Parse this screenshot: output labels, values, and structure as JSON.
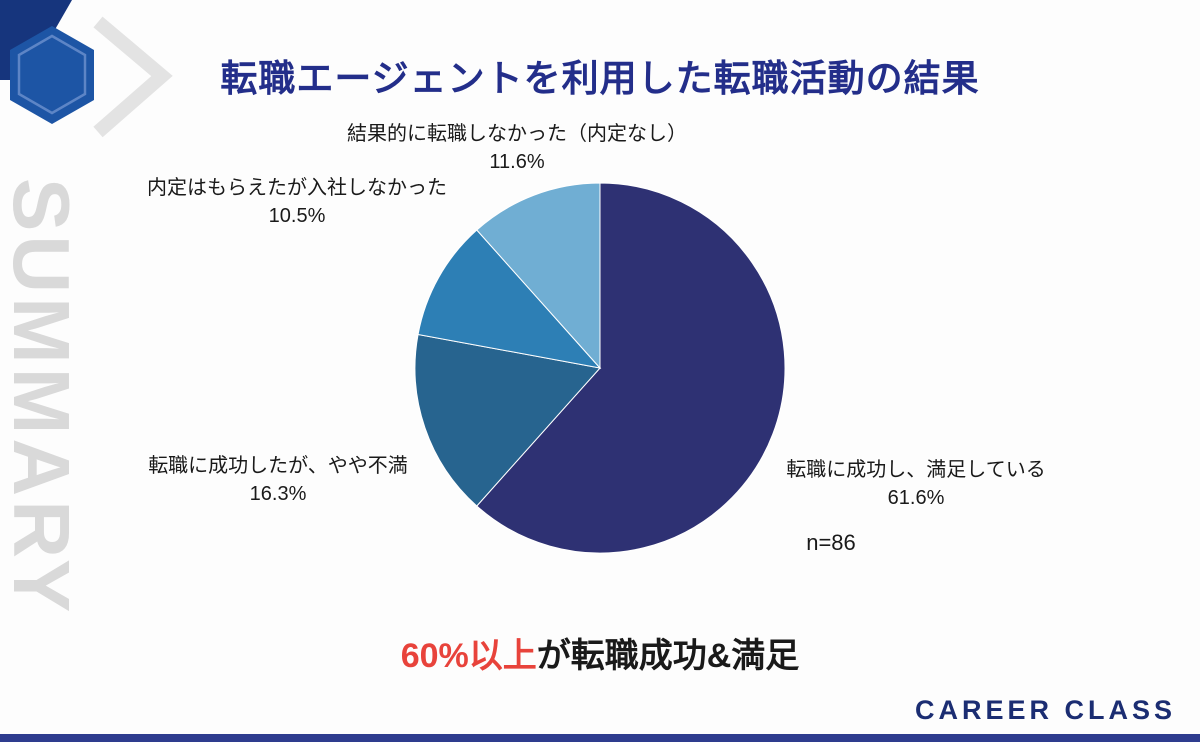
{
  "slide": {
    "title": "転職エージェントを利用した転職活動の結果",
    "watermark": "SUMMARY",
    "sample_size": "n=86",
    "key_message": {
      "emphasis": "60%以上",
      "rest": "が転職成功&満足"
    },
    "brand": "CAREER CLASS"
  },
  "colors": {
    "bg": "#fdfdfd",
    "title": "#232e8a",
    "text": "#1a1a1a",
    "watermark": "#d9d9d9",
    "red": "#e8433b",
    "brand": "#1b2d72",
    "bar": "#2e3c8e",
    "logo-blue": "#1d55a5",
    "logo-dark": "#16357d",
    "chevron": "#e3e3e3"
  },
  "chart_data": {
    "type": "pie",
    "title": "転職エージェントを利用した転職活動の結果",
    "sample_label": "n=86",
    "start_angle_deg": 0,
    "direction": "clockwise",
    "legend_position": "labels-around",
    "slices": [
      {
        "label": "転職に成功し、満足している",
        "value": 61.6,
        "value_label": "61.6%",
        "color": "#2e3173"
      },
      {
        "label": "転職に成功したが、やや不満",
        "value": 16.3,
        "value_label": "16.3%",
        "color": "#27648f"
      },
      {
        "label": "内定はもらえたが入社しなかった",
        "value": 10.5,
        "value_label": "10.5%",
        "color": "#2d7fb5"
      },
      {
        "label": "結果的に転職しなかった（内定なし）",
        "value": 11.6,
        "value_label": "11.6%",
        "color": "#70aed3"
      }
    ]
  }
}
